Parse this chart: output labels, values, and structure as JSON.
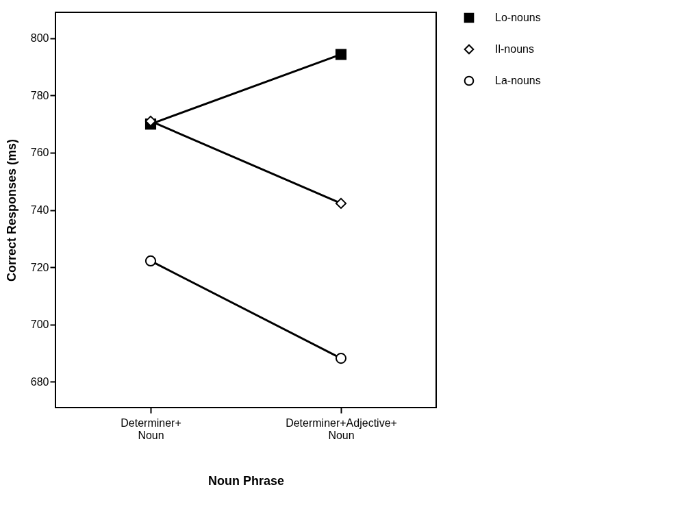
{
  "chart_data": {
    "type": "line",
    "xlabel": "Noun Phrase",
    "ylabel": "Correct Responses (ms)",
    "categories": [
      "Determiner+ Noun",
      "Determiner+Adjective+ Noun"
    ],
    "series": [
      {
        "name": "Lo-nouns",
        "color": "#000000",
        "marker": "square",
        "values": [
          770,
          794.3
        ]
      },
      {
        "name": "Il-nouns",
        "color": "#000000",
        "marker": "diamond",
        "values": [
          771,
          742.3
        ]
      },
      {
        "name": "La-nouns",
        "color": "#000000",
        "marker": "circle",
        "values": [
          722.2,
          688.2
        ]
      }
    ],
    "ylim": [
      671,
      809
    ],
    "yticks": [
      680,
      700,
      720,
      740,
      760,
      780,
      800
    ],
    "grid": false,
    "legend": "right"
  }
}
